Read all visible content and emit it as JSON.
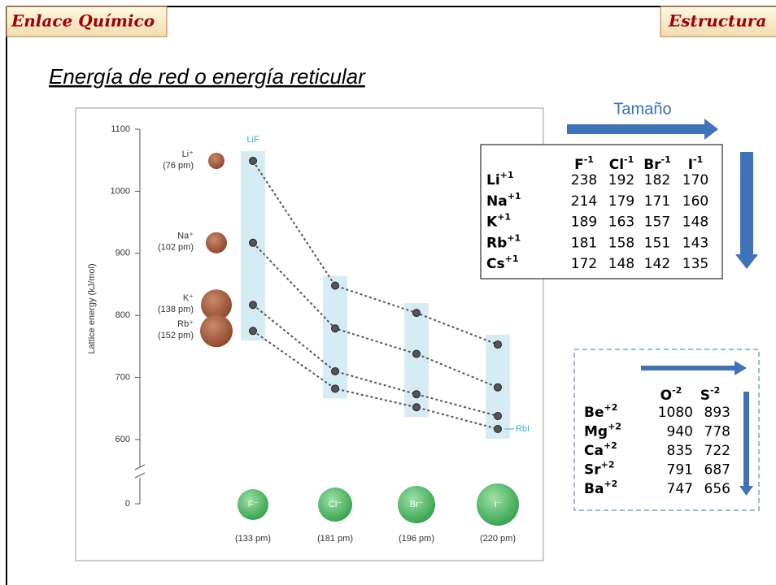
{
  "header": {
    "left": "Enlace Químico",
    "right": "Estructura"
  },
  "title": "Energía de red o energía reticular",
  "size_label": "Tamaño",
  "chart_data": {
    "type": "line",
    "ylabel": "Lattice energy (kJ/mol)",
    "categories": [
      "F⁻",
      "Cl⁻",
      "Br⁻",
      "I⁻"
    ],
    "category_sizes": [
      "(133 pm)",
      "(181 pm)",
      "(196 pm)",
      "(220 pm)"
    ],
    "series": [
      {
        "name": "Li⁺",
        "size_label": "(76 pm)",
        "color": "#555555",
        "values": [
          1049,
          848,
          804,
          753
        ]
      },
      {
        "name": "Na⁺",
        "size_label": "(102 pm)",
        "color": "#555555",
        "values": [
          917,
          779,
          738,
          684
        ]
      },
      {
        "name": "K⁺",
        "size_label": "(138 pm)",
        "color": "#555555",
        "values": [
          817,
          710,
          673,
          638
        ]
      },
      {
        "name": "Rb⁺",
        "size_label": "(152 pm)",
        "color": "#555555",
        "values": [
          775,
          682,
          652,
          617
        ]
      }
    ],
    "annotations": [
      "LiF",
      "RbI"
    ],
    "ylim": [
      570,
      1100
    ],
    "yticks": [
      0,
      600,
      700,
      800,
      900,
      1000,
      1100
    ],
    "axis_break": true
  },
  "table1": {
    "columns": [
      {
        "base": "F",
        "sup": "-1"
      },
      {
        "base": "Cl",
        "sup": "-1"
      },
      {
        "base": "Br",
        "sup": "-1"
      },
      {
        "base": "I",
        "sup": "-1"
      }
    ],
    "rows": [
      {
        "ion": {
          "base": "Li",
          "sup": "+1"
        },
        "values": [
          238,
          192,
          182,
          170
        ]
      },
      {
        "ion": {
          "base": "Na",
          "sup": "+1"
        },
        "values": [
          214,
          179,
          171,
          160
        ]
      },
      {
        "ion": {
          "base": "K",
          "sup": "+1"
        },
        "values": [
          189,
          163,
          157,
          148
        ]
      },
      {
        "ion": {
          "base": "Rb",
          "sup": "+1"
        },
        "values": [
          181,
          158,
          151,
          143
        ]
      },
      {
        "ion": {
          "base": "Cs",
          "sup": "+1"
        },
        "values": [
          172,
          148,
          142,
          135
        ]
      }
    ]
  },
  "table2": {
    "columns": [
      {
        "base": "O",
        "sup": "-2"
      },
      {
        "base": "S",
        "sup": "-2"
      }
    ],
    "rows": [
      {
        "ion": {
          "base": "Be",
          "sup": "+2"
        },
        "values": [
          1080,
          893
        ]
      },
      {
        "ion": {
          "base": "Mg",
          "sup": "+2"
        },
        "values": [
          940,
          778
        ]
      },
      {
        "ion": {
          "base": "Ca",
          "sup": "+2"
        },
        "values": [
          835,
          722
        ]
      },
      {
        "ion": {
          "base": "Sr",
          "sup": "+2"
        },
        "values": [
          791,
          687
        ]
      },
      {
        "ion": {
          "base": "Ba",
          "sup": "+2"
        },
        "values": [
          747,
          656
        ]
      }
    ]
  }
}
